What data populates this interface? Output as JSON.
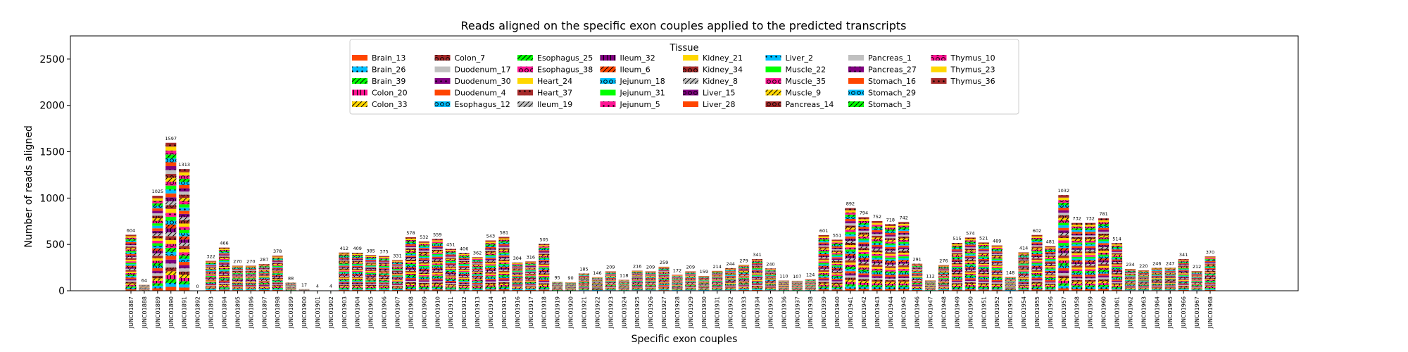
{
  "chart_data": {
    "type": "bar",
    "stacked": true,
    "title": "Reads aligned on the specific exon couples applied to the predicted transcripts",
    "xlabel": "Specific exon couples",
    "ylabel": "Number of reads aligned",
    "ylim": [
      0,
      2750
    ],
    "yticks": [
      0,
      500,
      1000,
      1500,
      2000,
      2500
    ],
    "grid": false,
    "legend": {
      "title": "Tissue",
      "placement": "top-center",
      "columns": 8
    },
    "categories": [
      "JUNC01887",
      "JUNC01888",
      "JUNC01889",
      "JUNC01890",
      "JUNC01891",
      "JUNC01892",
      "JUNC01893",
      "JUNC01894",
      "JUNC01895",
      "JUNC01896",
      "JUNC01897",
      "JUNC01898",
      "JUNC01899",
      "JUNC01900",
      "JUNC01901",
      "JUNC01902",
      "JUNC01903",
      "JUNC01904",
      "JUNC01905",
      "JUNC01906",
      "JUNC01907",
      "JUNC01908",
      "JUNC01909",
      "JUNC01910",
      "JUNC01911",
      "JUNC01912",
      "JUNC01913",
      "JUNC01914",
      "JUNC01915",
      "JUNC01916",
      "JUNC01917",
      "JUNC01918",
      "JUNC01919",
      "JUNC01920",
      "JUNC01921",
      "JUNC01922",
      "JUNC01923",
      "JUNC01924",
      "JUNC01925",
      "JUNC01926",
      "JUNC01927",
      "JUNC01928",
      "JUNC01929",
      "JUNC01930",
      "JUNC01931",
      "JUNC01932",
      "JUNC01933",
      "JUNC01934",
      "JUNC01935",
      "JUNC01936",
      "JUNC01937",
      "JUNC01938",
      "JUNC01939",
      "JUNC01940",
      "JUNC01941",
      "JUNC01942",
      "JUNC01943",
      "JUNC01944",
      "JUNC01945",
      "JUNC01946",
      "JUNC01947",
      "JUNC01948",
      "JUNC01949",
      "JUNC01950",
      "JUNC01951",
      "JUNC01952",
      "JUNC01953",
      "JUNC01954",
      "JUNC01955",
      "JUNC01956",
      "JUNC01957",
      "JUNC01958",
      "JUNC01959",
      "JUNC01960",
      "JUNC01961",
      "JUNC01962",
      "JUNC01963",
      "JUNC01964",
      "JUNC01965",
      "JUNC01966",
      "JUNC01967",
      "JUNC01968"
    ],
    "totals": [
      604,
      64,
      1025,
      1597,
      1313,
      0,
      322,
      466,
      270,
      270,
      287,
      378,
      88,
      17,
      4,
      4,
      412,
      409,
      385,
      375,
      331,
      578,
      532,
      559,
      451,
      406,
      362,
      543,
      581,
      304,
      316,
      505,
      95,
      90,
      185,
      146,
      209,
      118,
      216,
      209,
      259,
      172,
      209,
      159,
      214,
      244,
      279,
      341,
      240,
      110,
      107,
      124,
      601,
      551,
      892,
      794,
      752,
      718,
      742,
      291,
      112,
      276,
      515,
      574,
      521,
      489,
      148,
      414,
      602,
      481,
      1032,
      732,
      732,
      781,
      514,
      234,
      220,
      246,
      247,
      341,
      212,
      370
    ],
    "series": [
      {
        "name": "Brain_13",
        "color": "#FF4500",
        "hatch": "none"
      },
      {
        "name": "Brain_26",
        "color": "#00BFFF",
        "hatch": "dot"
      },
      {
        "name": "Brain_39",
        "color": "#00FF00",
        "hatch": "slash"
      },
      {
        "name": "Colon_20",
        "color": "#FF1493",
        "hatch": "bar"
      },
      {
        "name": "Colon_33",
        "color": "#FFD700",
        "hatch": "slash"
      },
      {
        "name": "Colon_7",
        "color": "#A52A2A",
        "hatch": "ring"
      },
      {
        "name": "Duodenum_17",
        "color": "#C0C0C0",
        "hatch": "none"
      },
      {
        "name": "Duodenum_30",
        "color": "#800080",
        "hatch": "dot"
      },
      {
        "name": "Duodenum_4",
        "color": "#FF4500",
        "hatch": "none"
      },
      {
        "name": "Esophagus_12",
        "color": "#00BFFF",
        "hatch": "ring"
      },
      {
        "name": "Esophagus_25",
        "color": "#00FF00",
        "hatch": "slash"
      },
      {
        "name": "Esophagus_38",
        "color": "#FF1493",
        "hatch": "ring"
      },
      {
        "name": "Heart_24",
        "color": "#FFD700",
        "hatch": "none"
      },
      {
        "name": "Heart_37",
        "color": "#A52A2A",
        "hatch": "dot"
      },
      {
        "name": "Ileum_19",
        "color": "#C0C0C0",
        "hatch": "slash"
      },
      {
        "name": "Ileum_32",
        "color": "#800080",
        "hatch": "bar"
      },
      {
        "name": "Ileum_6",
        "color": "#FF4500",
        "hatch": "slash"
      },
      {
        "name": "Jejunum_18",
        "color": "#00BFFF",
        "hatch": "ring"
      },
      {
        "name": "Jejunum_31",
        "color": "#00FF00",
        "hatch": "none"
      },
      {
        "name": "Jejunum_5",
        "color": "#FF1493",
        "hatch": "dot"
      },
      {
        "name": "Kidney_21",
        "color": "#FFD700",
        "hatch": "none"
      },
      {
        "name": "Kidney_34",
        "color": "#A52A2A",
        "hatch": "ring"
      },
      {
        "name": "Kidney_8",
        "color": "#C0C0C0",
        "hatch": "slash"
      },
      {
        "name": "Liver_15",
        "color": "#800080",
        "hatch": "ring"
      },
      {
        "name": "Liver_28",
        "color": "#FF4500",
        "hatch": "none"
      },
      {
        "name": "Liver_2",
        "color": "#00BFFF",
        "hatch": "dot"
      },
      {
        "name": "Muscle_22",
        "color": "#00FF00",
        "hatch": "none"
      },
      {
        "name": "Muscle_35",
        "color": "#FF1493",
        "hatch": "ring"
      },
      {
        "name": "Muscle_9",
        "color": "#FFD700",
        "hatch": "slash"
      },
      {
        "name": "Pancreas_14",
        "color": "#A52A2A",
        "hatch": "ring"
      },
      {
        "name": "Pancreas_1",
        "color": "#C0C0C0",
        "hatch": "none"
      },
      {
        "name": "Pancreas_27",
        "color": "#800080",
        "hatch": "dot"
      },
      {
        "name": "Stomach_16",
        "color": "#FF4500",
        "hatch": "none"
      },
      {
        "name": "Stomach_29",
        "color": "#00BFFF",
        "hatch": "ring"
      },
      {
        "name": "Stomach_3",
        "color": "#00FF00",
        "hatch": "slash"
      },
      {
        "name": "Thymus_10",
        "color": "#FF1493",
        "hatch": "ring"
      },
      {
        "name": "Thymus_23",
        "color": "#FFD700",
        "hatch": "none"
      },
      {
        "name": "Thymus_36",
        "color": "#A52A2A",
        "hatch": "dot"
      }
    ]
  }
}
